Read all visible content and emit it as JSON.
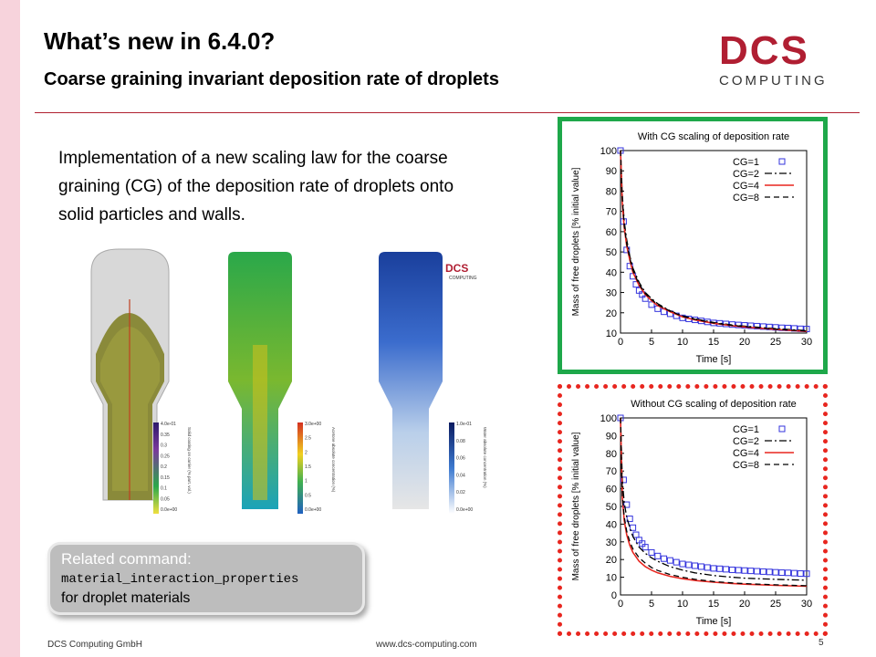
{
  "slide": {
    "title": "What’s new in 6.4.0?",
    "subtitle": "Coarse graining invariant deposition rate of droplets",
    "body": "Implementation  of a new scaling law for the coarse graining  (CG) of the deposition rate of droplets onto solid particles and walls.",
    "colors": {
      "accent": "#b01e32",
      "green": "#1ea84a",
      "red": "#e8261f",
      "strip": "#f7d3dc"
    }
  },
  "logo": {
    "main": "DCS",
    "sub": "COMPUTING"
  },
  "simulations": {
    "colorbar1": {
      "ticks": [
        "4.0e-01",
        "0.35",
        "0.3",
        "0.25",
        "0.2",
        "0.15",
        "0.1",
        "0.05",
        "0.0e+00"
      ],
      "label": "Solid coating on carrier (% part. vol.)"
    },
    "colorbar2": {
      "ticks": [
        "3.0e+00",
        "2.5",
        "2",
        "1.5",
        "1",
        "0.5",
        "0.0e+00"
      ],
      "label": "Acetone absolute concentration (%)"
    },
    "colorbar3": {
      "ticks": [
        "1.0e-01",
        "0.08",
        "0.06",
        "0.04",
        "0.02",
        "0.0e+00"
      ],
      "label": "Water absolute concentration (%)"
    },
    "mini_logo": {
      "main": "DCS",
      "sub": "COMPUTING"
    }
  },
  "command_box": {
    "label": "Related command:",
    "command": "material_interaction_properties",
    "tail": "for droplet materials"
  },
  "footer": {
    "company": "DCS Computing GmbH",
    "url": "www.dcs-computing.com",
    "page": "5"
  },
  "chart_data": [
    {
      "type": "line",
      "title": "With CG scaling of deposition rate",
      "xlabel": "Time [s]",
      "ylabel": "Mass of free droplets [% initial value]",
      "xlim": [
        0,
        30
      ],
      "ylim": [
        10,
        100
      ],
      "xticks": [
        0,
        5,
        10,
        15,
        20,
        25,
        30
      ],
      "yticks": [
        10,
        20,
        30,
        40,
        50,
        60,
        70,
        80,
        90,
        100
      ],
      "legend_position": "top-right",
      "series": [
        {
          "name": "CG=1",
          "style": "squares",
          "color": "#3333dd",
          "x": [
            0,
            0.5,
            1,
            1.5,
            2,
            2.5,
            3,
            3.5,
            4,
            5,
            6,
            7,
            8,
            9,
            10,
            11,
            12,
            13,
            14,
            15,
            16,
            17,
            18,
            19,
            20,
            21,
            22,
            23,
            24,
            25,
            26,
            27,
            28,
            29,
            30
          ],
          "y": [
            100,
            65,
            51,
            43,
            38,
            34,
            31,
            29,
            27,
            24,
            22,
            20.5,
            19.5,
            18.5,
            17.5,
            17,
            16.5,
            16,
            15.5,
            15,
            14.8,
            14.5,
            14.2,
            14,
            13.8,
            13.6,
            13.4,
            13.2,
            13,
            12.8,
            12.6,
            12.5,
            12.3,
            12.1,
            12
          ]
        },
        {
          "name": "CG=2",
          "style": "dashdot",
          "color": "#000000",
          "x": [
            0,
            0.3,
            0.6,
            1,
            1.5,
            2,
            3,
            4,
            5,
            6,
            8,
            10,
            12,
            15,
            18,
            20,
            25,
            30
          ],
          "y": [
            100,
            78,
            65,
            56,
            48,
            42,
            35,
            30,
            27,
            24.5,
            21,
            18.5,
            17,
            15.2,
            14,
            13.4,
            12.2,
            11.2
          ]
        },
        {
          "name": "CG=4",
          "style": "solid",
          "color": "#e8261f",
          "x": [
            0,
            0.3,
            0.6,
            1,
            1.5,
            2,
            3,
            4,
            5,
            6,
            8,
            10,
            12,
            15,
            18,
            20,
            25,
            30
          ],
          "y": [
            100,
            74,
            62,
            53,
            46,
            40,
            33.5,
            29,
            26,
            23.5,
            20.5,
            18,
            16.5,
            14.8,
            13.6,
            13,
            11.8,
            10.8
          ]
        },
        {
          "name": "CG=8",
          "style": "dashed",
          "color": "#000000",
          "x": [
            0,
            0.3,
            0.6,
            1,
            1.5,
            2,
            3,
            4,
            5,
            6,
            8,
            10,
            12,
            15,
            18,
            20,
            25,
            30
          ],
          "y": [
            100,
            76,
            63,
            54,
            47,
            41,
            34,
            29.5,
            26.5,
            24,
            20.8,
            18.3,
            16.8,
            15,
            13.8,
            13.2,
            12,
            11
          ]
        }
      ]
    },
    {
      "type": "line",
      "title": "Without CG scaling of deposition rate",
      "xlabel": "Time [s]",
      "ylabel": "Mass of free droplets [% initial value]",
      "xlim": [
        0,
        30
      ],
      "ylim": [
        0,
        100
      ],
      "xticks": [
        0,
        5,
        10,
        15,
        20,
        25,
        30
      ],
      "yticks": [
        0,
        10,
        20,
        30,
        40,
        50,
        60,
        70,
        80,
        90,
        100
      ],
      "legend_position": "top-right",
      "series": [
        {
          "name": "CG=1",
          "style": "squares",
          "color": "#3333dd",
          "x": [
            0,
            0.5,
            1,
            1.5,
            2,
            2.5,
            3,
            3.5,
            4,
            5,
            6,
            7,
            8,
            9,
            10,
            11,
            12,
            13,
            14,
            15,
            16,
            17,
            18,
            19,
            20,
            21,
            22,
            23,
            24,
            25,
            26,
            27,
            28,
            29,
            30
          ],
          "y": [
            100,
            65,
            51,
            43,
            38,
            34,
            31,
            29,
            27,
            24,
            22,
            20.5,
            19.5,
            18.5,
            17.5,
            17,
            16.5,
            16,
            15.5,
            15,
            14.8,
            14.5,
            14.2,
            14,
            13.8,
            13.6,
            13.4,
            13.2,
            13,
            12.8,
            12.6,
            12.5,
            12.3,
            12.1,
            12
          ]
        },
        {
          "name": "CG=2",
          "style": "dashdot",
          "color": "#000000",
          "x": [
            0,
            0.3,
            0.6,
            1,
            1.5,
            2,
            3,
            4,
            5,
            6,
            8,
            10,
            12,
            15,
            18,
            20,
            25,
            30
          ],
          "y": [
            100,
            65,
            52,
            44,
            38,
            33,
            27,
            23.5,
            21,
            19,
            16,
            14,
            12.5,
            11,
            10,
            9.5,
            8.8,
            8.3
          ]
        },
        {
          "name": "CG=4",
          "style": "solid",
          "color": "#e8261f",
          "x": [
            0,
            0.3,
            0.6,
            1,
            1.5,
            2,
            3,
            4,
            5,
            6,
            8,
            10,
            12,
            15,
            18,
            20,
            25,
            30
          ],
          "y": [
            100,
            55,
            42,
            34,
            28,
            24,
            19,
            16,
            14,
            12.5,
            10.5,
            9.2,
            8.2,
            7.2,
            6.5,
            6.1,
            5.4,
            4.9
          ]
        },
        {
          "name": "CG=8",
          "style": "dashed",
          "color": "#000000",
          "x": [
            0,
            0.3,
            0.6,
            1,
            1.5,
            2,
            3,
            4,
            5,
            6,
            8,
            10,
            12,
            15,
            18,
            20,
            25,
            30
          ],
          "y": [
            100,
            56,
            44,
            36,
            30,
            26,
            21,
            18,
            15.5,
            13.8,
            11.5,
            10,
            8.8,
            7.6,
            6.8,
            6.4,
            5.7,
            5.2
          ]
        }
      ]
    }
  ]
}
